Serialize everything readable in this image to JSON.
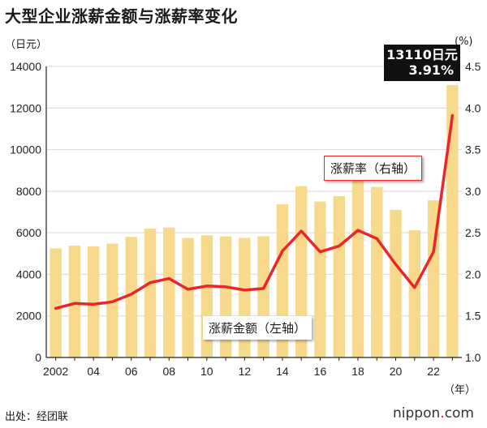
{
  "title": "大型企业涨薪金额与涨薪率变化",
  "left_unit": "（日元）",
  "right_unit": "(%)",
  "year_unit": "（年）",
  "source": "出处：经团联",
  "brand": {
    "name": "nippon",
    "tld": "com"
  },
  "callout": {
    "amount": "13110日元",
    "rate": "3.91%"
  },
  "series_labels": {
    "rate": "涨薪率（右轴）",
    "amount": "涨薪金额（左轴）"
  },
  "colors": {
    "bar": "#f7d98b",
    "line": "#e8262c",
    "axis": "#222222",
    "callout_bg": "#111111"
  },
  "chart_data": {
    "type": "bar+line",
    "x": [
      2002,
      2003,
      2004,
      2005,
      2006,
      2007,
      2008,
      2009,
      2010,
      2011,
      2012,
      2013,
      2014,
      2015,
      2016,
      2017,
      2018,
      2019,
      2020,
      2021,
      2022,
      2023
    ],
    "x_tick_labels": [
      "2002",
      "04",
      "06",
      "08",
      "10",
      "12",
      "14",
      "16",
      "18",
      "20",
      "22"
    ],
    "x_tick_years": [
      2002,
      2004,
      2006,
      2008,
      2010,
      2012,
      2014,
      2016,
      2018,
      2020,
      2022
    ],
    "series": [
      {
        "name": "涨薪金额（左轴）",
        "type": "bar",
        "axis": "left",
        "values": [
          5250,
          5380,
          5350,
          5480,
          5800,
          6200,
          6250,
          5750,
          5880,
          5820,
          5750,
          5830,
          7370,
          8240,
          7500,
          7760,
          8540,
          8200,
          7100,
          6120,
          7560,
          13110
        ]
      },
      {
        "name": "涨薪率（右轴）",
        "type": "line",
        "axis": "right",
        "values": [
          1.59,
          1.65,
          1.64,
          1.67,
          1.76,
          1.9,
          1.95,
          1.82,
          1.86,
          1.85,
          1.81,
          1.83,
          2.28,
          2.52,
          2.27,
          2.34,
          2.53,
          2.43,
          2.12,
          1.84,
          2.27,
          3.91
        ]
      }
    ],
    "left_axis": {
      "range": [
        0,
        14000
      ],
      "ticks": [
        0,
        2000,
        4000,
        6000,
        8000,
        10000,
        12000,
        14000
      ]
    },
    "right_axis": {
      "range": [
        1.0,
        4.5
      ],
      "ticks": [
        "1.0",
        "1.5",
        "2.0",
        "2.5",
        "3.0",
        "3.5",
        "4.0",
        "4.5"
      ]
    },
    "grid": true
  }
}
